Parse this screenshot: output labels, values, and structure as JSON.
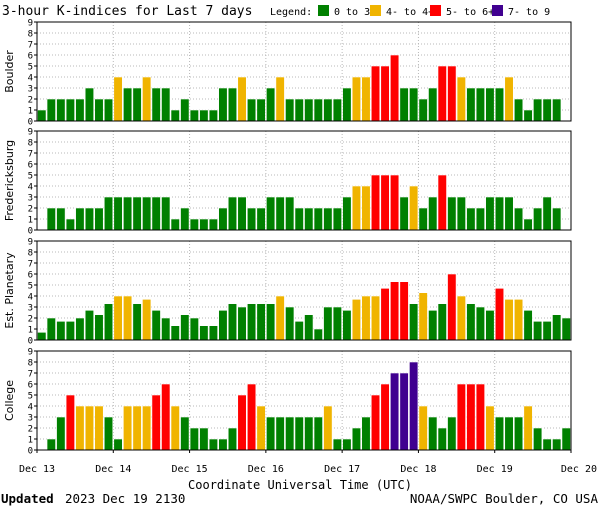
{
  "chart_data": {
    "type": "bar",
    "title": "3-hour K-indices for Last 7 days",
    "legend": {
      "label": "Legend:",
      "placement": "top-right",
      "items": [
        {
          "label": "0 to 3+",
          "color": "#008000"
        },
        {
          "label": "4- to 4+",
          "color": "#f0b400"
        },
        {
          "label": "5- to 6+",
          "color": "#ff0000"
        },
        {
          "label": "7- to 9",
          "color": "#400090"
        }
      ]
    },
    "xlabel": "Coordinate Universal Time (UTC)",
    "x_ticks": [
      "Dec 13",
      "Dec 14",
      "Dec 15",
      "Dec 16",
      "Dec 17",
      "Dec 18",
      "Dec 19",
      "Dec 20"
    ],
    "ylim": [
      0,
      9
    ],
    "y_ticks": [
      "0",
      "1",
      "2",
      "3",
      "4",
      "5",
      "6",
      "7",
      "8",
      "9"
    ],
    "grid": true,
    "bins_per_day": 8,
    "series": [
      {
        "name": "Boulder",
        "values": [
          1,
          2,
          2,
          2,
          2,
          3,
          2,
          2,
          4,
          3,
          3,
          4,
          3,
          3,
          1,
          2,
          1,
          1,
          1,
          3,
          3,
          4,
          2,
          2,
          3,
          4,
          2,
          2,
          2,
          2,
          2,
          2,
          3,
          4,
          4,
          5,
          5,
          6,
          3,
          3,
          2,
          3,
          5,
          5,
          4,
          3,
          3,
          3,
          3,
          4,
          2,
          1,
          2,
          2,
          2,
          0
        ]
      },
      {
        "name": "Fredericksburg",
        "values": [
          0,
          2,
          2,
          1,
          2,
          2,
          2,
          3,
          3,
          3,
          3,
          3,
          3,
          3,
          1,
          2,
          1,
          1,
          1,
          2,
          3,
          3,
          2,
          2,
          3,
          3,
          3,
          2,
          2,
          2,
          2,
          2,
          3,
          4,
          4,
          5,
          5,
          5,
          3,
          4,
          2,
          3,
          5,
          3,
          3,
          2,
          2,
          3,
          3,
          3,
          2,
          1,
          2,
          3,
          2,
          0
        ]
      },
      {
        "name": "Est. Planetary",
        "values": [
          0.7,
          2,
          1.7,
          1.7,
          2,
          2.7,
          2.3,
          3.3,
          4,
          4,
          3.3,
          3.7,
          2.7,
          2,
          1.3,
          2.3,
          2,
          1.3,
          1.3,
          2.7,
          3.3,
          3,
          3.3,
          3.3,
          3.3,
          4,
          3,
          1.7,
          2.3,
          1,
          3,
          3,
          2.7,
          3.7,
          4,
          4,
          4.7,
          5.3,
          5.3,
          3.3,
          4.3,
          2.7,
          3.3,
          6,
          4,
          3.3,
          3,
          2.7,
          4.7,
          3.7,
          3.7,
          2.7,
          1.7,
          1.7,
          2.3,
          2
        ]
      },
      {
        "name": "College",
        "values": [
          0,
          1,
          3,
          5,
          4,
          4,
          4,
          3,
          1,
          4,
          4,
          4,
          5,
          6,
          4,
          3,
          2,
          2,
          1,
          1,
          2,
          5,
          6,
          4,
          3,
          3,
          3,
          3,
          3,
          3,
          4,
          1,
          1,
          2,
          3,
          5,
          6,
          7,
          7,
          8,
          4,
          3,
          2,
          3,
          6,
          6,
          6,
          4,
          3,
          3,
          3,
          4,
          2,
          1,
          1,
          2
        ]
      }
    ]
  },
  "footer": {
    "updated_label": "Updated",
    "updated_value": "2023 Dec 19 2130",
    "credit": "NOAA/SWPC Boulder, CO USA"
  }
}
